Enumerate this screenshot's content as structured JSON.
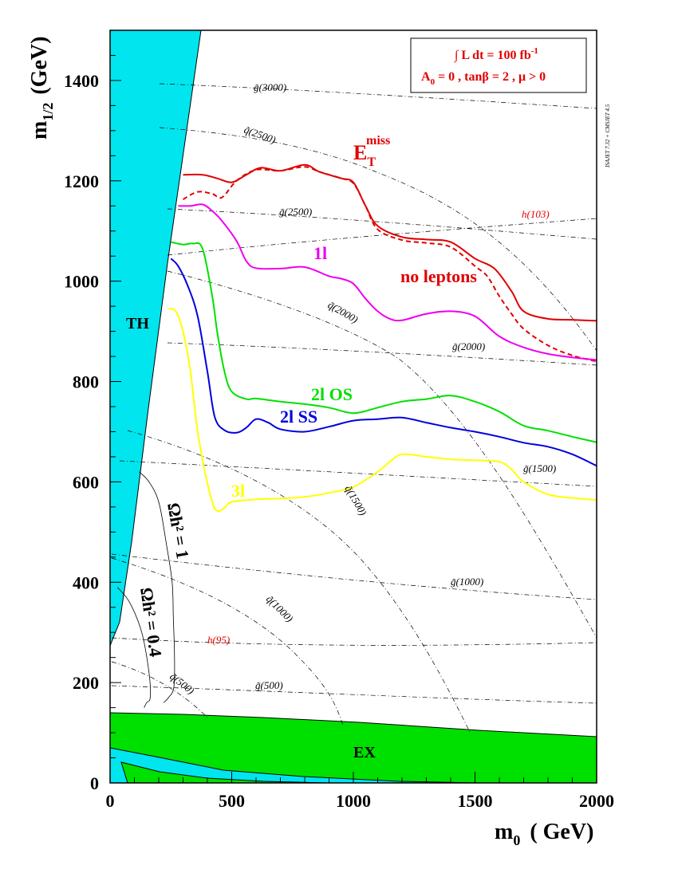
{
  "chart_data": {
    "type": "line",
    "xlabel": "m",
    "xlabel_sub": "0",
    "xlabel_unit": "( GeV)",
    "ylabel": "m",
    "ylabel_sub": "1/2",
    "ylabel_unit": "(GeV)",
    "xlim": [
      0,
      2000
    ],
    "ylim": [
      0,
      1500
    ],
    "x_ticks": [
      0,
      500,
      1000,
      1500,
      2000
    ],
    "y_ticks": [
      0,
      200,
      400,
      600,
      800,
      1000,
      1200,
      1400
    ],
    "grid": false,
    "legend_box": {
      "line1": "∫ L dt = 100 fb",
      "line1_sup": "-1",
      "line2": "A",
      "line2_sub": "0",
      "line2_rest": " = 0 ,  tanβ = 2 ,  μ > 0"
    },
    "side_note": "ISAJET 7.32 + CMSJET 4.5",
    "regions": [
      {
        "name": "TH",
        "label": "TH",
        "color": "#00e5ee"
      },
      {
        "name": "EX",
        "label": "EX",
        "color": "#00e000"
      }
    ],
    "series": [
      {
        "name": "E_T^miss",
        "label_main": "E",
        "label_sub": "T",
        "label_sup": "miss",
        "color": "#e00000",
        "style": "solid",
        "x": [
          300,
          380,
          440,
          500,
          560,
          620,
          700,
          800,
          860,
          950,
          1000,
          1050,
          1100,
          1200,
          1300,
          1400,
          1500,
          1580,
          1650,
          1700,
          1800,
          1900,
          2000
        ],
        "y": [
          1212,
          1212,
          1205,
          1197,
          1212,
          1226,
          1220,
          1232,
          1218,
          1205,
          1197,
          1150,
          1110,
          1088,
          1083,
          1078,
          1045,
          1025,
          980,
          940,
          925,
          923,
          921
        ]
      },
      {
        "name": "no leptons",
        "label": "no leptons",
        "color": "#e00000",
        "style": "dashed",
        "x": [
          300,
          360,
          420,
          460,
          520,
          600,
          700,
          800,
          860,
          950,
          1000,
          1050,
          1100,
          1200,
          1300,
          1400,
          1500,
          1550,
          1600,
          1650,
          1700,
          1800,
          1900,
          2000
        ],
        "y": [
          1163,
          1178,
          1174,
          1167,
          1200,
          1222,
          1220,
          1228,
          1218,
          1205,
          1195,
          1150,
          1103,
          1082,
          1076,
          1068,
          1030,
          1010,
          970,
          935,
          905,
          872,
          852,
          840
        ]
      },
      {
        "name": "1l",
        "label": "1l",
        "color": "#ee00ee",
        "style": "solid",
        "x": [
          280,
          330,
          380,
          420,
          460,
          520,
          560,
          600,
          700,
          800,
          900,
          950,
          1000,
          1050,
          1100,
          1150,
          1200,
          1300,
          1400,
          1500,
          1600,
          1700,
          1800,
          1900,
          2000
        ],
        "y": [
          1150,
          1150,
          1153,
          1140,
          1120,
          1080,
          1040,
          1026,
          1025,
          1028,
          1010,
          1005,
          995,
          965,
          940,
          925,
          922,
          935,
          940,
          930,
          890,
          868,
          855,
          848,
          843
        ]
      },
      {
        "name": "2l OS",
        "label": "2l OS",
        "color": "#00e000",
        "style": "solid",
        "x": [
          250,
          300,
          340,
          380,
          420,
          440,
          470,
          500,
          560,
          600,
          700,
          800,
          900,
          1000,
          1100,
          1200,
          1300,
          1400,
          1500,
          1600,
          1700,
          1800,
          1900,
          2000
        ],
        "y": [
          1078,
          1073,
          1075,
          1065,
          970,
          900,
          820,
          780,
          765,
          766,
          760,
          755,
          748,
          737,
          748,
          760,
          765,
          772,
          760,
          740,
          712,
          702,
          690,
          679
        ]
      },
      {
        "name": "2l SS",
        "label": "2l SS",
        "color": "#0000e0",
        "style": "solid",
        "x": [
          250,
          280,
          320,
          360,
          400,
          430,
          470,
          520,
          560,
          600,
          650,
          700,
          800,
          900,
          1000,
          1100,
          1200,
          1300,
          1400,
          1500,
          1600,
          1700,
          1800,
          1900,
          2000
        ],
        "y": [
          1045,
          1030,
          990,
          930,
          820,
          730,
          703,
          698,
          708,
          725,
          718,
          705,
          700,
          710,
          722,
          725,
          728,
          718,
          708,
          700,
          690,
          678,
          670,
          655,
          632
        ]
      },
      {
        "name": "3l",
        "label": "3l",
        "color": "#ffff00",
        "style": "solid",
        "x": [
          240,
          270,
          300,
          330,
          360,
          390,
          420,
          440,
          470,
          500,
          600,
          700,
          800,
          900,
          1000,
          1100,
          1150,
          1200,
          1300,
          1400,
          1500,
          1600,
          1650,
          1700,
          1800,
          1900,
          2000
        ],
        "y": [
          945,
          940,
          900,
          820,
          700,
          620,
          560,
          542,
          548,
          560,
          565,
          567,
          570,
          578,
          590,
          620,
          640,
          655,
          650,
          645,
          643,
          640,
          625,
          600,
          575,
          568,
          564
        ]
      }
    ],
    "relic_contours": [
      {
        "label": "Ωh² = 1",
        "x": [
          120,
          160,
          200,
          230,
          255,
          260,
          265,
          262,
          240,
          220
        ],
        "y": [
          620,
          600,
          560,
          480,
          400,
          330,
          250,
          190,
          170,
          160
        ]
      },
      {
        "label": "Ωh² = 0.4",
        "x": [
          30,
          80,
          130,
          160,
          165,
          150,
          140
        ],
        "y": [
          390,
          360,
          300,
          220,
          170,
          160,
          150
        ]
      }
    ],
    "iso_mass_labels": {
      "gluino_3000": "g̃(3000)",
      "squark_2500": "q̃(2500)",
      "gluino_2500": "g̃(2500)",
      "squark_2000": "q̃(2000)",
      "gluino_2000": "g̃(2000)",
      "gluino_1500": "g̃(1500)",
      "squark_1500": "q̃(1500)",
      "gluino_1000": "g̃(1000)",
      "squark_1000": "q̃(1000)",
      "squark_500": "q̃(500)",
      "gluino_500": "g̃(500)",
      "higgs_103": "h(103)",
      "higgs_95": "h(95)"
    }
  }
}
